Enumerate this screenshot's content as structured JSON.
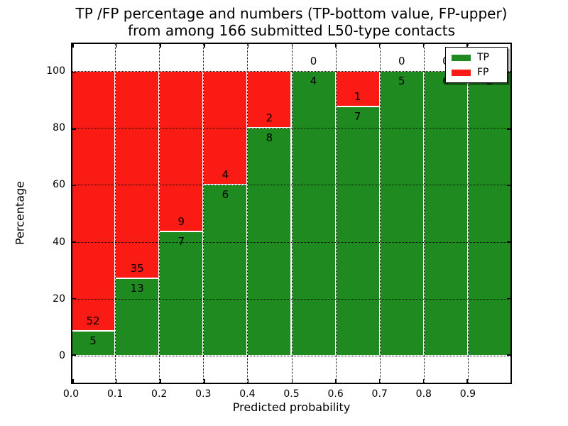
{
  "title": {
    "line1": "TP /FP percentage and numbers (TP-bottom value, FP-upper)",
    "line2": "from among 166 submitted L50-type contacts"
  },
  "axes": {
    "ylabel": "Percentage",
    "xlabel": "Predicted probability",
    "yticks": [
      0,
      20,
      40,
      60,
      80,
      100
    ],
    "xticks": [
      "0.0",
      "0.1",
      "0.2",
      "0.3",
      "0.4",
      "0.5",
      "0.6",
      "0.7",
      "0.8",
      "0.9"
    ],
    "ylim": [
      -10,
      110
    ],
    "xlim": [
      0.0,
      1.0
    ],
    "grid": "dotted, drawn above bars"
  },
  "legend": {
    "position": "upper right",
    "items": [
      {
        "label": "TP",
        "color": "#1f8a1f"
      },
      {
        "label": "FP",
        "color": "#fa1b15"
      }
    ]
  },
  "colors": {
    "tp": "#1f8a1f",
    "fp": "#fa1b15",
    "bar_edge": "#ffffff",
    "grid": "#000000",
    "background": "#ffffff"
  },
  "chart_data": {
    "type": "bar",
    "stacked": true,
    "normalized_to_percent": true,
    "title": "TP /FP percentage and numbers (TP-bottom value, FP-upper) from among 166 submitted L50-type contacts",
    "xlabel": "Predicted probability",
    "ylabel": "Percentage",
    "ylim": [
      -10,
      110
    ],
    "bin_width": 0.1,
    "categories": [
      "0.0-0.1",
      "0.1-0.2",
      "0.2-0.3",
      "0.3-0.4",
      "0.4-0.5",
      "0.5-0.6",
      "0.6-0.7",
      "0.7-0.8",
      "0.8-0.9",
      "0.9-1.0"
    ],
    "series": [
      {
        "name": "TP",
        "values": [
          5,
          13,
          7,
          6,
          8,
          4,
          7,
          5,
          6,
          2
        ]
      },
      {
        "name": "FP",
        "values": [
          52,
          35,
          9,
          4,
          2,
          0,
          1,
          0,
          0,
          0
        ]
      }
    ],
    "total_contacts": 166,
    "label_offset_percent": 3.5,
    "legend_position": "upper right"
  }
}
